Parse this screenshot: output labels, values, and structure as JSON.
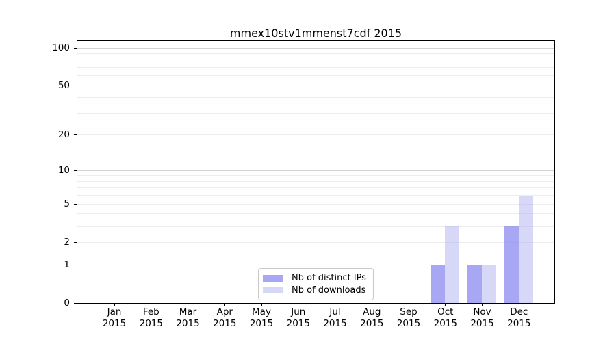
{
  "chart_data": {
    "type": "bar",
    "title": "mmex10stv1mmenst7cdf 2015",
    "categories": [
      "Jan 2015",
      "Feb 2015",
      "Mar 2015",
      "Apr 2015",
      "May 2015",
      "Jun 2015",
      "Jul 2015",
      "Aug 2015",
      "Sep 2015",
      "Oct 2015",
      "Nov 2015",
      "Dec 2015"
    ],
    "series": [
      {
        "name": "Nb of distinct IPs",
        "color": "#8585ef",
        "opacity": 0.72,
        "values": [
          0,
          0,
          0,
          0,
          0,
          0,
          0,
          0,
          0,
          1,
          1,
          3
        ]
      },
      {
        "name": "Nb of downloads",
        "color": "#a8a8f0",
        "opacity": 0.46,
        "values": [
          0,
          0,
          0,
          0,
          0,
          0,
          0,
          0,
          0,
          3,
          1,
          6
        ]
      }
    ],
    "y_axis": {
      "scale": "log1p",
      "ticks": [
        0,
        1,
        2,
        5,
        10,
        20,
        50,
        100
      ],
      "ylim": [
        0,
        100
      ]
    },
    "x_axis": {
      "tick_year_split": true
    },
    "grid": true,
    "legend": {
      "position": "bottom-center",
      "entries": [
        "Nb of distinct IPs",
        "Nb of downloads"
      ]
    }
  }
}
